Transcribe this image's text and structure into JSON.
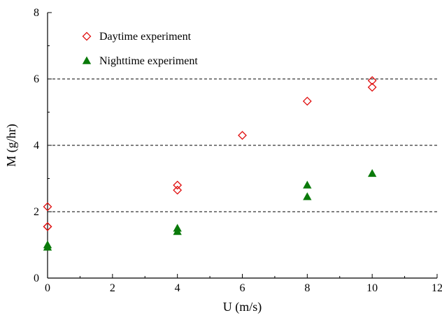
{
  "chart_data": {
    "type": "scatter",
    "xlabel": "U (m/s)",
    "ylabel": "M (g/hr)",
    "xlim": [
      0,
      12
    ],
    "ylim": [
      0,
      8
    ],
    "x_ticks": [
      "0",
      "2",
      "4",
      "6",
      "8",
      "10",
      "12"
    ],
    "y_ticks": [
      "0",
      "2",
      "4",
      "6",
      "8"
    ],
    "reference_lines_y": [
      2,
      4,
      6
    ],
    "reference_line_style": "dashed",
    "legend_position": "top-left",
    "series": [
      {
        "name": "Daytime experiment",
        "marker": "open-diamond",
        "color": "#e01010",
        "x": [
          0,
          0,
          0,
          4,
          4,
          6,
          8,
          10,
          10
        ],
        "y": [
          2.15,
          1.55,
          1.55,
          2.8,
          2.65,
          4.3,
          5.33,
          5.95,
          5.75
        ]
      },
      {
        "name": "Nighttime experiment",
        "marker": "filled-triangle",
        "color": "#0a7a0a",
        "x": [
          0,
          0,
          4,
          4,
          8,
          8,
          10
        ],
        "y": [
          1.0,
          0.93,
          1.5,
          1.4,
          2.8,
          2.45,
          3.15
        ]
      }
    ]
  }
}
